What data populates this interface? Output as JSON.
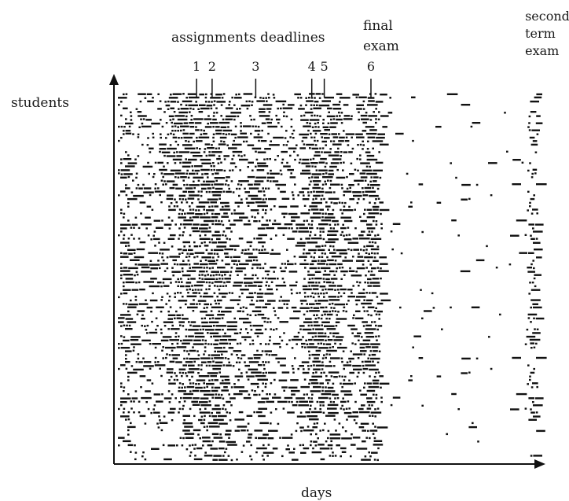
{
  "chart_data": {
    "type": "scatter",
    "description_of_marks": "",
    "axis_labels": {
      "x": "days",
      "y": "students"
    },
    "top_annotation": "assignments deadlines",
    "deadline_markers": [
      {
        "label": "1",
        "day": 26
      },
      {
        "label": "2",
        "day": 31
      },
      {
        "label": "3",
        "day": 45
      },
      {
        "label": "4",
        "day": 63
      },
      {
        "label": "5",
        "day": 67
      },
      {
        "label": "6",
        "day": 82
      }
    ],
    "exam_labels": [
      {
        "lines": [
          "final",
          "exam"
        ],
        "day": 82
      },
      {
        "lines": [
          "second",
          "term",
          "exam"
        ],
        "day": 134
      }
    ],
    "x_range": [
      0,
      137
    ],
    "y_range": [
      0,
      100
    ],
    "grid": false,
    "legend": "none",
    "color": "#111111"
  }
}
